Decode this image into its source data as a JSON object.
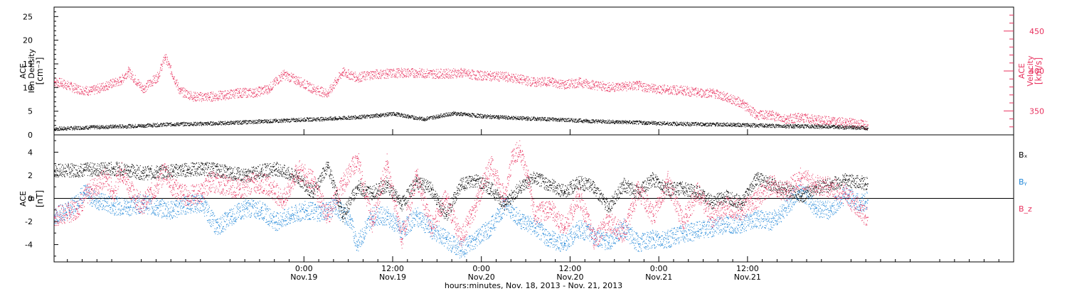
{
  "chart_data": [
    {
      "type": "scatter",
      "panel": "top",
      "ylabel_left": [
        "ACE",
        "Ion Density",
        "[cm⁻³]"
      ],
      "ylabel_right": [
        "ACE",
        "Velocity",
        "[km/s]"
      ],
      "ylim_left": [
        0,
        27
      ],
      "ylim_right": [
        320,
        480
      ],
      "yticks_left": [
        0,
        5,
        10,
        15,
        20,
        25
      ],
      "yticks_right": [
        350,
        400,
        450
      ],
      "grid": false,
      "series": [
        {
          "name": "Ion Density",
          "axis": "left",
          "color": "#000000",
          "points": [
            [
              0,
              1.3
            ],
            [
              4,
              1.6
            ],
            [
              8,
              1.8
            ],
            [
              12,
              2.0
            ],
            [
              16,
              2.3
            ],
            [
              20,
              2.4
            ],
            [
              24,
              2.6
            ],
            [
              28,
              2.9
            ],
            [
              30,
              3.0
            ],
            [
              34,
              3.3
            ],
            [
              38,
              3.5
            ],
            [
              42,
              3.9
            ],
            [
              44,
              4.2
            ],
            [
              46,
              4.5
            ],
            [
              48,
              3.9
            ],
            [
              50,
              3.4
            ],
            [
              52,
              4.0
            ],
            [
              54,
              4.6
            ],
            [
              58,
              4.0
            ],
            [
              60,
              3.8
            ],
            [
              64,
              3.5
            ],
            [
              68,
              3.3
            ],
            [
              72,
              3.0
            ],
            [
              76,
              2.8
            ],
            [
              80,
              2.6
            ],
            [
              84,
              2.4
            ],
            [
              88,
              2.3
            ],
            [
              92,
              2.2
            ],
            [
              96,
              2.0
            ],
            [
              100,
              1.9
            ],
            [
              104,
              1.8
            ],
            [
              106,
              1.7
            ],
            [
              108,
              1.6
            ],
            [
              110,
              1.5
            ]
          ]
        },
        {
          "name": "Velocity",
          "axis": "right",
          "color": "#e8315e",
          "points": [
            [
              0,
              387
            ],
            [
              1,
              385
            ],
            [
              3,
              378
            ],
            [
              5,
              375
            ],
            [
              7,
              382
            ],
            [
              9,
              388
            ],
            [
              10,
              400
            ],
            [
              12,
              378
            ],
            [
              14,
              393
            ],
            [
              15,
              418
            ],
            [
              17,
              375
            ],
            [
              19,
              368
            ],
            [
              21,
              368
            ],
            [
              23,
              370
            ],
            [
              25,
              373
            ],
            [
              27,
              373
            ],
            [
              29,
              378
            ],
            [
              31,
              396
            ],
            [
              33,
              388
            ],
            [
              35,
              378
            ],
            [
              37,
              372
            ],
            [
              39,
              399
            ],
            [
              41,
              392
            ],
            [
              43,
              396
            ],
            [
              45,
              397
            ],
            [
              47,
              398
            ],
            [
              49,
              398
            ],
            [
              51,
              397
            ],
            [
              53,
              397
            ],
            [
              55,
              398
            ],
            [
              57,
              395
            ],
            [
              59,
              394
            ],
            [
              61,
              393
            ],
            [
              63,
              390
            ],
            [
              65,
              386
            ],
            [
              67,
              387
            ],
            [
              69,
              383
            ],
            [
              71,
              386
            ],
            [
              73,
              383
            ],
            [
              75,
              380
            ],
            [
              77,
              381
            ],
            [
              79,
              382
            ],
            [
              81,
              378
            ],
            [
              83,
              377
            ],
            [
              85,
              376
            ],
            [
              87,
              373
            ],
            [
              89,
              373
            ],
            [
              91,
              367
            ],
            [
              93,
              360
            ],
            [
              95,
              345
            ],
            [
              97,
              345
            ],
            [
              99,
              340
            ],
            [
              101,
              342
            ],
            [
              103,
              339
            ],
            [
              105,
              337
            ],
            [
              107,
              336
            ],
            [
              110,
              333
            ]
          ]
        }
      ]
    },
    {
      "type": "scatter",
      "panel": "bottom",
      "ylabel": [
        "ACE",
        "B",
        "[nT]"
      ],
      "ylim": [
        -5.5,
        5.5
      ],
      "yticks": [
        -4,
        -2,
        0,
        2,
        4
      ],
      "grid": false,
      "reference_line": 0,
      "legend": [
        {
          "label": "Bₓ",
          "color": "#000000"
        },
        {
          "label": "Bᵧ",
          "color": "#1f86d8"
        },
        {
          "label": "B_z",
          "color": "#e8315e"
        }
      ],
      "series": [
        {
          "name": "Bx",
          "color": "#000000",
          "points": [
            [
              0,
              2.4
            ],
            [
              4,
              2.5
            ],
            [
              8,
              2.6
            ],
            [
              10,
              2.5
            ],
            [
              12,
              2.2
            ],
            [
              14,
              2.3
            ],
            [
              16,
              2.4
            ],
            [
              18,
              2.5
            ],
            [
              20,
              2.6
            ],
            [
              22,
              2.5
            ],
            [
              24,
              2.2
            ],
            [
              26,
              2.0
            ],
            [
              28,
              2.4
            ],
            [
              30,
              2.6
            ],
            [
              33,
              1.8
            ],
            [
              35,
              0.5
            ],
            [
              37,
              2.9
            ],
            [
              39,
              -1.5
            ],
            [
              41,
              1.0
            ],
            [
              43,
              0.5
            ],
            [
              45,
              1.2
            ],
            [
              47,
              -0.5
            ],
            [
              49,
              1.5
            ],
            [
              51,
              0.8
            ],
            [
              53,
              -1.5
            ],
            [
              55,
              1.2
            ],
            [
              57,
              1.6
            ],
            [
              59,
              0.9
            ],
            [
              61,
              -0.5
            ],
            [
              63,
              1.0
            ],
            [
              65,
              1.8
            ],
            [
              67,
              1.2
            ],
            [
              69,
              0.6
            ],
            [
              71,
              1.4
            ],
            [
              73,
              1.0
            ],
            [
              75,
              -0.8
            ],
            [
              77,
              1.2
            ],
            [
              79,
              0.5
            ],
            [
              81,
              1.7
            ],
            [
              83,
              0.8
            ],
            [
              85,
              0.9
            ],
            [
              87,
              0.5
            ],
            [
              89,
              -0.3
            ],
            [
              91,
              0.2
            ],
            [
              93,
              -0.4
            ],
            [
              95,
              1.8
            ],
            [
              97,
              1.2
            ],
            [
              99,
              0.8
            ],
            [
              101,
              0.2
            ],
            [
              103,
              1.0
            ],
            [
              105,
              1.2
            ],
            [
              107,
              1.6
            ],
            [
              110,
              1.3
            ]
          ]
        },
        {
          "name": "By",
          "color": "#1f86d8",
          "points": [
            [
              0,
              -1.5
            ],
            [
              2,
              -1.0
            ],
            [
              4,
              0.5
            ],
            [
              6,
              -0.2
            ],
            [
              8,
              -0.6
            ],
            [
              10,
              -0.7
            ],
            [
              12,
              -0.4
            ],
            [
              14,
              -0.8
            ],
            [
              16,
              -1.0
            ],
            [
              18,
              -0.5
            ],
            [
              20,
              -0.4
            ],
            [
              22,
              -2.5
            ],
            [
              24,
              -1.5
            ],
            [
              26,
              -0.8
            ],
            [
              28,
              -1.0
            ],
            [
              30,
              -2.0
            ],
            [
              32,
              -1.5
            ],
            [
              34,
              -1.0
            ],
            [
              36,
              -1.2
            ],
            [
              38,
              -0.7
            ],
            [
              40,
              -1.8
            ],
            [
              41,
              -4.0
            ],
            [
              43,
              -1.5
            ],
            [
              45,
              -1.5
            ],
            [
              47,
              -2.8
            ],
            [
              49,
              -1.5
            ],
            [
              51,
              -2.7
            ],
            [
              53,
              -3.5
            ],
            [
              55,
              -4.5
            ],
            [
              57,
              -3.5
            ],
            [
              59,
              -2.5
            ],
            [
              61,
              -0.5
            ],
            [
              63,
              -1.8
            ],
            [
              65,
              -2.5
            ],
            [
              67,
              -3.5
            ],
            [
              69,
              -3.9
            ],
            [
              71,
              -2.6
            ],
            [
              73,
              -3.2
            ],
            [
              75,
              -3.8
            ],
            [
              77,
              -2.5
            ],
            [
              79,
              -3.9
            ],
            [
              81,
              -3.5
            ],
            [
              83,
              -3.5
            ],
            [
              85,
              -3.0
            ],
            [
              87,
              -2.8
            ],
            [
              89,
              -2.5
            ],
            [
              91,
              -2.2
            ],
            [
              93,
              -2.2
            ],
            [
              95,
              -1.7
            ],
            [
              97,
              -2.0
            ],
            [
              99,
              -0.8
            ],
            [
              101,
              0.8
            ],
            [
              103,
              -0.8
            ],
            [
              105,
              -1.0
            ],
            [
              107,
              0.4
            ],
            [
              109,
              -0.5
            ],
            [
              110,
              -0.1
            ]
          ]
        },
        {
          "name": "Bz",
          "color": "#e8315e",
          "points": [
            [
              0,
              -1.6
            ],
            [
              2,
              -1.2
            ],
            [
              3,
              -0.9
            ],
            [
              5,
              0.8
            ],
            [
              7,
              1.8
            ],
            [
              8,
              0.5
            ],
            [
              9,
              2.5
            ],
            [
              11,
              0.0
            ],
            [
              12,
              -0.5
            ],
            [
              14,
              1.2
            ],
            [
              15,
              2.5
            ],
            [
              16,
              1.0
            ],
            [
              18,
              0.2
            ],
            [
              20,
              0.5
            ],
            [
              21,
              1.5
            ],
            [
              23,
              1.2
            ],
            [
              25,
              0.8
            ],
            [
              27,
              1.4
            ],
            [
              29,
              1.2
            ],
            [
              31,
              -0.2
            ],
            [
              33,
              2.5
            ],
            [
              35,
              1.5
            ],
            [
              37,
              -1.5
            ],
            [
              39,
              1.2
            ],
            [
              41,
              3.5
            ],
            [
              43,
              -2.0
            ],
            [
              45,
              3.0
            ],
            [
              47,
              -3.5
            ],
            [
              49,
              2.0
            ],
            [
              51,
              -2.5
            ],
            [
              53,
              0.0
            ],
            [
              55,
              -3.5
            ],
            [
              57,
              -0.6
            ],
            [
              59,
              3.0
            ],
            [
              61,
              0.0
            ],
            [
              62,
              3.8
            ],
            [
              63,
              4.2
            ],
            [
              64,
              2.0
            ],
            [
              65,
              -1.5
            ],
            [
              67,
              -0.8
            ],
            [
              69,
              -2.5
            ],
            [
              71,
              0.2
            ],
            [
              73,
              -3.5
            ],
            [
              75,
              -2.0
            ],
            [
              77,
              -3.0
            ],
            [
              79,
              0.8
            ],
            [
              81,
              -1.5
            ],
            [
              83,
              1.5
            ],
            [
              85,
              -2.0
            ],
            [
              87,
              0.5
            ],
            [
              89,
              -1.6
            ],
            [
              91,
              -0.6
            ],
            [
              93,
              -1.0
            ],
            [
              95,
              0.0
            ],
            [
              97,
              1.2
            ],
            [
              99,
              0.6
            ],
            [
              101,
              1.8
            ],
            [
              103,
              1.2
            ],
            [
              105,
              1.0
            ],
            [
              107,
              0.4
            ],
            [
              109,
              -1.0
            ],
            [
              110,
              -1.6
            ]
          ]
        }
      ],
      "x_axis": {
        "title": "hours:minutes, Nov. 18, 2013 - Nov. 21, 2013",
        "range_hours": [
          -9.8,
          120
        ],
        "ticks": [
          {
            "hours": 24,
            "label": "0:00",
            "sublabel": "Nov.19"
          },
          {
            "hours": 36,
            "label": "12:00",
            "sublabel": "Nov.19"
          },
          {
            "hours": 48,
            "label": "0:00",
            "sublabel": "Nov.20"
          },
          {
            "hours": 60,
            "label": "12:00",
            "sublabel": "Nov.20"
          },
          {
            "hours": 72,
            "label": "0:00",
            "sublabel": "Nov.21"
          },
          {
            "hours": 84,
            "label": "12:00",
            "sublabel": "Nov.21"
          }
        ]
      }
    }
  ]
}
